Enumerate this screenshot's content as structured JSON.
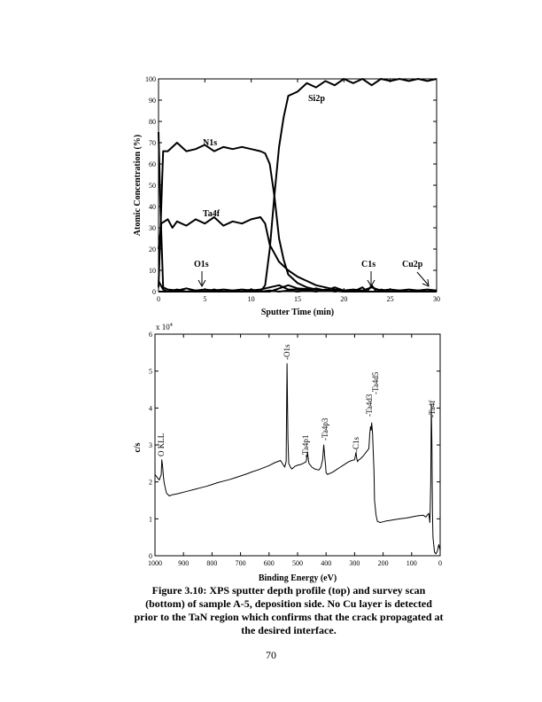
{
  "chart_data": [
    {
      "type": "line",
      "title": "",
      "xlabel": "Sputter Time (min)",
      "ylabel": "Atomic Concentration (%)",
      "xlim": [
        0,
        30
      ],
      "ylim": [
        0,
        100
      ],
      "xticks": [
        0,
        5,
        10,
        15,
        20,
        25,
        30
      ],
      "yticks": [
        0,
        10,
        20,
        30,
        40,
        50,
        60,
        70,
        80,
        90,
        100
      ],
      "series": [
        {
          "name": "N1s",
          "x": [
            0,
            0.5,
            1,
            2,
            3,
            4,
            5,
            6,
            7,
            8,
            9,
            10,
            11,
            11.5,
            12,
            12.5,
            13,
            13.5,
            14,
            15,
            16,
            17,
            18,
            19,
            20,
            21,
            22,
            23,
            24,
            25,
            26,
            27,
            28,
            29,
            30
          ],
          "y": [
            2,
            66,
            66,
            70,
            66,
            67,
            69,
            66,
            68,
            67,
            68,
            67,
            66,
            65,
            60,
            45,
            25,
            15,
            8,
            4,
            2,
            1,
            0.5,
            0.5,
            0,
            0,
            0,
            0,
            0,
            0,
            0,
            0,
            0,
            0,
            0
          ]
        },
        {
          "name": "Ta4f",
          "x": [
            0,
            0.3,
            1,
            1.5,
            2,
            3,
            4,
            5,
            6,
            7,
            8,
            9,
            10,
            11,
            11.5,
            12,
            13,
            14,
            15,
            16,
            17,
            18,
            19,
            20,
            22,
            25,
            28,
            30
          ],
          "y": [
            20,
            32,
            34,
            30,
            33,
            31,
            34,
            32,
            35,
            31,
            33,
            32,
            34,
            35,
            32,
            22,
            14,
            10,
            7,
            5,
            3,
            2,
            1,
            0.5,
            0,
            0,
            0,
            0
          ]
        },
        {
          "name": "Si2p",
          "x": [
            0,
            11,
            11.5,
            12,
            12.5,
            13,
            13.5,
            14,
            15,
            16,
            17,
            18,
            19,
            20,
            21,
            22,
            23,
            24,
            25,
            26,
            27,
            28,
            29,
            30
          ],
          "y": [
            0,
            0,
            3,
            20,
            45,
            68,
            82,
            92,
            94,
            98,
            96,
            99,
            97,
            100,
            98,
            100,
            97,
            100,
            99,
            100,
            99,
            100,
            99,
            100
          ]
        },
        {
          "name": "O1s",
          "x": [
            0,
            0.2,
            0.5,
            1,
            2,
            3,
            4,
            5,
            6,
            7,
            8,
            9,
            10,
            11,
            12,
            13,
            14,
            15,
            16,
            17,
            18,
            19,
            20,
            21,
            22,
            23,
            24,
            25,
            26,
            27,
            28,
            29,
            30
          ],
          "y": [
            75,
            40,
            2,
            1,
            0.5,
            1.5,
            0.5,
            1,
            0.5,
            1,
            0.5,
            1,
            0.5,
            1,
            2,
            3,
            1,
            1,
            0.5,
            1.5,
            0.5,
            2,
            0.5,
            1,
            0.5,
            2,
            0.5,
            1,
            0.5,
            1,
            0.5,
            1,
            0.5
          ]
        },
        {
          "name": "C1s",
          "x": [
            0,
            0.5,
            1,
            2,
            3,
            4,
            5,
            6,
            7,
            8,
            9,
            10,
            11,
            12,
            13,
            14,
            15,
            16,
            17,
            18,
            19,
            20,
            21,
            22,
            22.5,
            23,
            23.5,
            24,
            25,
            26,
            27,
            28,
            29,
            30
          ],
          "y": [
            5,
            1,
            0,
            1,
            0,
            0.5,
            0,
            1,
            0,
            0.5,
            0,
            1,
            0,
            0.5,
            0,
            0.5,
            0,
            0.5,
            0,
            1,
            0,
            0.5,
            0,
            2,
            0,
            3,
            0,
            1,
            0,
            0.5,
            0,
            0.5,
            0,
            0.5
          ]
        },
        {
          "name": "Cu2p",
          "x": [
            0,
            12,
            13,
            14,
            15,
            20,
            25,
            30
          ],
          "y": [
            0,
            0,
            1.5,
            3,
            1.5,
            0,
            0,
            0
          ]
        }
      ],
      "annotations": [
        "N1s",
        "Ta4f",
        "Si2p",
        "O1s",
        "C1s",
        "Cu2p"
      ]
    },
    {
      "type": "line",
      "title": "",
      "xlabel": "Binding Energy (eV)",
      "ylabel": "c/s",
      "y_multiplier": "x 10",
      "y_multiplier_exp": "4",
      "xlim": [
        1000,
        0
      ],
      "ylim": [
        0,
        6
      ],
      "xticks": [
        1000,
        900,
        800,
        700,
        600,
        500,
        400,
        300,
        200,
        100,
        0
      ],
      "yticks": [
        0,
        1,
        2,
        3,
        4,
        5,
        6
      ],
      "series": [
        {
          "x": [
            1000,
            995,
            985,
            978,
            976,
            973,
            970,
            967,
            960,
            950,
            940,
            920,
            900,
            880,
            860,
            840,
            820,
            800,
            780,
            760,
            740,
            720,
            700,
            680,
            660,
            640,
            620,
            600,
            580,
            560,
            545,
            540,
            537,
            534,
            531,
            528,
            525,
            520,
            510,
            500,
            490,
            480,
            470,
            465,
            462,
            460,
            450,
            440,
            425,
            418,
            412,
            408,
            405,
            402,
            400,
            395,
            390,
            380,
            370,
            360,
            350,
            340,
            330,
            320,
            310,
            300,
            295,
            293,
            290,
            285,
            280,
            270,
            260,
            250,
            247,
            244,
            242,
            240,
            237,
            235,
            232,
            230,
            225,
            220,
            210,
            200,
            190,
            180,
            160,
            140,
            120,
            100,
            80,
            60,
            50,
            40,
            36,
            33,
            31,
            29,
            27,
            25,
            20,
            15,
            10,
            5,
            0
          ],
          "y": [
            2.2,
            2.15,
            2.05,
            2.2,
            2.6,
            2.4,
            2.1,
            1.95,
            1.7,
            1.62,
            1.65,
            1.68,
            1.72,
            1.76,
            1.8,
            1.84,
            1.88,
            1.93,
            1.98,
            2.02,
            2.06,
            2.11,
            2.16,
            2.21,
            2.27,
            2.32,
            2.38,
            2.44,
            2.52,
            2.58,
            2.4,
            2.55,
            5.2,
            3.2,
            2.5,
            2.45,
            2.4,
            2.35,
            2.42,
            2.45,
            2.47,
            2.5,
            2.55,
            2.8,
            2.6,
            2.5,
            2.4,
            2.35,
            2.32,
            2.4,
            2.6,
            3.0,
            2.7,
            2.45,
            2.25,
            2.2,
            2.22,
            2.25,
            2.3,
            2.35,
            2.4,
            2.45,
            2.5,
            2.55,
            2.58,
            2.6,
            2.8,
            2.65,
            2.55,
            2.6,
            2.62,
            2.7,
            2.8,
            2.9,
            3.3,
            3.5,
            3.4,
            3.6,
            3.3,
            2.9,
            2.3,
            1.5,
            1.1,
            0.93,
            0.9,
            0.92,
            0.94,
            0.95,
            0.98,
            1.0,
            1.02,
            1.05,
            1.08,
            1.1,
            1.05,
            1.15,
            0.9,
            2.0,
            4.1,
            3.0,
            1.2,
            0.5,
            0.1,
            0.05,
            0.12,
            0.3,
            0.15
          ]
        }
      ],
      "annotations": [
        "O KLL",
        "-O1s",
        "-Ta4p1",
        "-Ta4p3",
        "-C1s",
        "-Ta4d3",
        "-Ta4d5",
        "-Ta4f"
      ]
    }
  ],
  "caption": "Figure 3.10: XPS sputter depth profile (top) and survey scan (bottom) of sample A-5, deposition side.  No Cu layer is detected prior to the TaN region which confirms that the crack propagated at the desired interface.",
  "page_number": "70"
}
